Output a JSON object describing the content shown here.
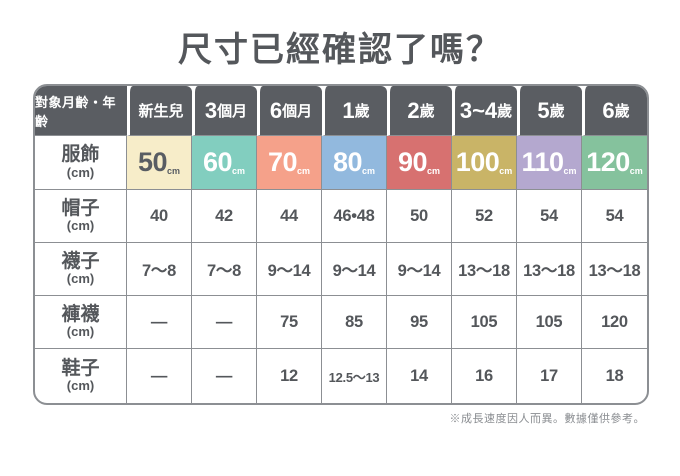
{
  "title": "尺寸已經確認了嗎？",
  "note": "※成長速度因人而異。數據僅供參考。",
  "colors": {
    "header_bg": "#5a5d62",
    "grid_line": "#8c8f93",
    "text_dark": "#54575b"
  },
  "table": {
    "corner_label": "對象月齡・年齡",
    "columns": [
      {
        "big": "",
        "small": "新生兒"
      },
      {
        "big": "3",
        "small": "個月"
      },
      {
        "big": "6",
        "small": "個月"
      },
      {
        "big": "1",
        "small": "歲"
      },
      {
        "big": "2",
        "small": "歲"
      },
      {
        "big": "3~4",
        "small": "歲"
      },
      {
        "big": "5",
        "small": "歲"
      },
      {
        "big": "6",
        "small": "歲"
      }
    ],
    "size_row": {
      "label": "服飾",
      "unit": "(cm)",
      "cells": [
        {
          "value": "50",
          "unit": "cm",
          "bg": "#f7edc9",
          "fg": "#595d63"
        },
        {
          "value": "60",
          "unit": "cm",
          "bg": "#82cebf",
          "fg": "#ffffff"
        },
        {
          "value": "70",
          "unit": "cm",
          "bg": "#f5a18a",
          "fg": "#ffffff"
        },
        {
          "value": "80",
          "unit": "cm",
          "bg": "#92b9de",
          "fg": "#ffffff"
        },
        {
          "value": "90",
          "unit": "cm",
          "bg": "#d77170",
          "fg": "#ffffff"
        },
        {
          "value": "100",
          "unit": "cm",
          "bg": "#c9b467",
          "fg": "#ffffff"
        },
        {
          "value": "110",
          "unit": "cm",
          "bg": "#b4a8cf",
          "fg": "#ffffff"
        },
        {
          "value": "120",
          "unit": "cm",
          "bg": "#85c29d",
          "fg": "#ffffff"
        }
      ]
    },
    "rows": [
      {
        "label": "帽子",
        "unit": "(cm)",
        "cells": [
          "40",
          "42",
          "44",
          "46•48",
          "50",
          "52",
          "54",
          "54"
        ]
      },
      {
        "label": "襪子",
        "unit": "(cm)",
        "cells": [
          "7～8",
          "7～8",
          "9～14",
          "9～14",
          "9～14",
          "13～18",
          "13～18",
          "13～18"
        ]
      },
      {
        "label": "褲襪",
        "unit": "(cm)",
        "cells": [
          "—",
          "—",
          "75",
          "85",
          "95",
          "105",
          "105",
          "120"
        ]
      },
      {
        "label": "鞋子",
        "unit": "(cm)",
        "cells": [
          "—",
          "—",
          "12",
          "12.5～13",
          "14",
          "16",
          "17",
          "18"
        ]
      }
    ]
  },
  "chart_data": {
    "type": "table",
    "title": "尺寸已經確認了嗎？",
    "columns": [
      "對象月齡・年齡",
      "新生兒",
      "3個月",
      "6個月",
      "1歲",
      "2歲",
      "3~4歲",
      "5歲",
      "6歲"
    ],
    "rows": [
      [
        "服飾(cm)",
        "50cm",
        "60cm",
        "70cm",
        "80cm",
        "90cm",
        "100cm",
        "110cm",
        "120cm"
      ],
      [
        "帽子(cm)",
        "40",
        "42",
        "44",
        "46•48",
        "50",
        "52",
        "54",
        "54"
      ],
      [
        "襪子(cm)",
        "7～8",
        "7～8",
        "9～14",
        "9～14",
        "9～14",
        "13～18",
        "13～18",
        "13～18"
      ],
      [
        "褲襪(cm)",
        "—",
        "—",
        "75",
        "85",
        "95",
        "105",
        "105",
        "120"
      ],
      [
        "鞋子(cm)",
        "—",
        "—",
        "12",
        "12.5～13",
        "14",
        "16",
        "17",
        "18"
      ]
    ],
    "note": "※成長速度因人而異。數據僅供參考。"
  }
}
